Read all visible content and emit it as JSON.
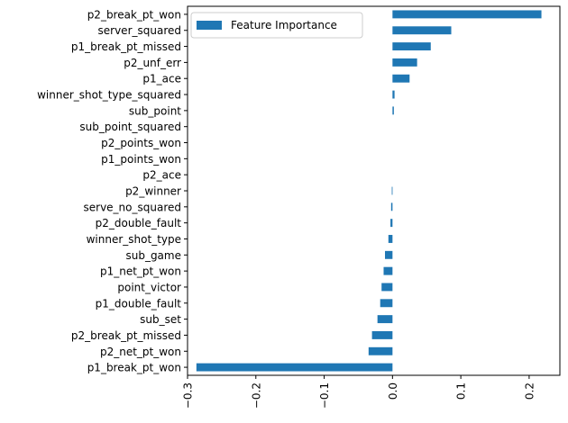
{
  "chart_data": {
    "type": "bar",
    "orientation": "horizontal",
    "title": "",
    "xlabel": "",
    "ylabel": "",
    "categories": [
      "p2_break_pt_won",
      "server_squared",
      "p1_break_pt_missed",
      "p2_unf_err",
      "p1_ace",
      "winner_shot_type_squared",
      "sub_point",
      "sub_point_squared",
      "p2_points_won",
      "p1_points_won",
      "p2_ace",
      "p2_winner",
      "serve_no_squared",
      "p2_double_fault",
      "winner_shot_type",
      "sub_game",
      "p1_net_pt_won",
      "point_victor",
      "p1_double_fault",
      "sub_set",
      "p2_break_pt_missed",
      "p2_net_pt_won",
      "p1_break_pt_won"
    ],
    "series": [
      {
        "name": "Feature Importance",
        "color": "#1f77b4",
        "values": [
          0.218,
          0.086,
          0.056,
          0.036,
          0.025,
          0.003,
          0.002,
          0.0,
          0.0,
          0.0,
          0.0,
          -0.001,
          -0.002,
          -0.003,
          -0.006,
          -0.011,
          -0.013,
          -0.016,
          -0.018,
          -0.022,
          -0.03,
          -0.035,
          -0.287
        ]
      }
    ],
    "xlim": [
      -0.3,
      0.245
    ],
    "xticks": [
      -0.3,
      -0.2,
      -0.1,
      0.0,
      0.1,
      0.2
    ],
    "xtick_labels": [
      "−0.3",
      "−0.2",
      "−0.1",
      "0.0",
      "0.1",
      "0.2"
    ],
    "grid": false,
    "legend": "top-left"
  }
}
